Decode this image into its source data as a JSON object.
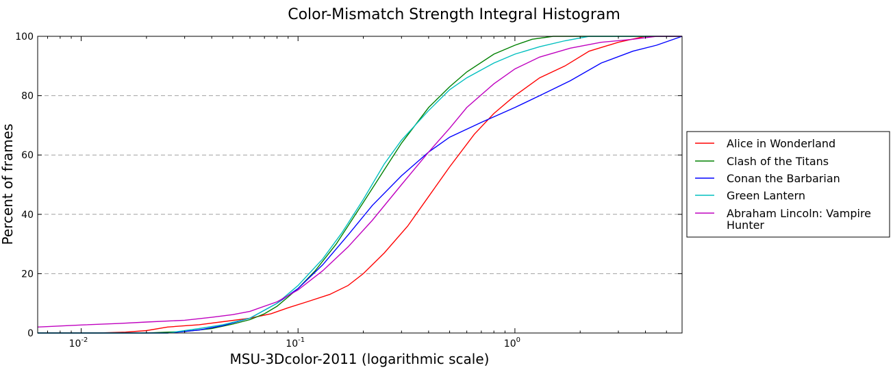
{
  "chart_data": {
    "type": "line",
    "title": "Color-Mismatch Strength Integral Histogram",
    "xlabel": "MSU-3Dcolor-2011 (logarithmic scale)",
    "ylabel": "Percent of frames",
    "xscale": "log",
    "xlim": [
      0.0063,
      5.9
    ],
    "ylim": [
      0,
      100
    ],
    "xticks": [
      {
        "value": 0.01,
        "base": "10",
        "exp": "-2"
      },
      {
        "value": 0.1,
        "base": "10",
        "exp": "-1"
      },
      {
        "value": 1,
        "base": "10",
        "exp": "0"
      }
    ],
    "yticks": [
      0,
      20,
      40,
      60,
      80,
      100
    ],
    "grid": "horizontal dashed",
    "legend_position": "right-outside",
    "series": [
      {
        "name": "Alice in Wonderland",
        "color": "#ff0000",
        "x": [
          0.0063,
          0.012,
          0.016,
          0.02,
          0.025,
          0.035,
          0.045,
          0.06,
          0.075,
          0.09,
          0.11,
          0.14,
          0.17,
          0.2,
          0.25,
          0.32,
          0.4,
          0.5,
          0.65,
          0.8,
          1.0,
          1.3,
          1.7,
          2.2,
          3.0,
          4.0,
          5.9
        ],
        "y": [
          0,
          0,
          0.3,
          0.8,
          2.0,
          2.8,
          3.8,
          5.0,
          6.5,
          8.5,
          10.5,
          13.0,
          16.0,
          20.0,
          27.0,
          36.0,
          46.0,
          56.0,
          67.0,
          74.0,
          80.0,
          86.0,
          90.0,
          95.0,
          98.0,
          100,
          100
        ]
      },
      {
        "name": "Clash of the Titans",
        "color": "#008000",
        "x": [
          0.0063,
          0.02,
          0.03,
          0.04,
          0.05,
          0.06,
          0.07,
          0.08,
          0.1,
          0.12,
          0.15,
          0.2,
          0.25,
          0.3,
          0.4,
          0.5,
          0.6,
          0.8,
          1.0,
          1.2,
          1.5,
          2.0,
          3.0,
          5.9
        ],
        "y": [
          0,
          0,
          0.5,
          1.5,
          3.0,
          4.5,
          6.5,
          9.0,
          15.0,
          21.0,
          30.0,
          44.0,
          55.0,
          64.0,
          76.0,
          83.0,
          88.0,
          94.0,
          97.0,
          99.0,
          100,
          100,
          100,
          100
        ]
      },
      {
        "name": "Conan the Barbarian",
        "color": "#0000ff",
        "x": [
          0.0063,
          0.025,
          0.035,
          0.045,
          0.06,
          0.08,
          0.1,
          0.13,
          0.17,
          0.22,
          0.3,
          0.4,
          0.5,
          0.7,
          1.0,
          1.3,
          1.8,
          2.5,
          3.5,
          4.5,
          5.9
        ],
        "y": [
          0,
          0,
          1.0,
          2.5,
          5.0,
          10.0,
          15.0,
          23.0,
          33.0,
          43.0,
          53.0,
          61.0,
          66.0,
          71.0,
          76.0,
          80.0,
          85.0,
          91.0,
          95.0,
          97.0,
          100
        ]
      },
      {
        "name": "Green Lantern",
        "color": "#00bfbf",
        "x": [
          0.0063,
          0.025,
          0.035,
          0.045,
          0.06,
          0.08,
          0.1,
          0.13,
          0.16,
          0.2,
          0.25,
          0.3,
          0.4,
          0.5,
          0.6,
          0.8,
          1.0,
          1.3,
          1.7,
          2.2,
          3.0,
          5.9
        ],
        "y": [
          0,
          0,
          1.5,
          2.8,
          5.0,
          10.0,
          16.0,
          25.0,
          34.0,
          45.0,
          57.0,
          65.0,
          75.0,
          82.0,
          86.0,
          91.0,
          94.0,
          96.5,
          98.5,
          100,
          100,
          100
        ]
      },
      {
        "name": "Abraham Lincoln: Vampire Hunter",
        "color": "#bf00bf",
        "x": [
          0.0063,
          0.01,
          0.015,
          0.02,
          0.03,
          0.04,
          0.05,
          0.06,
          0.08,
          0.1,
          0.13,
          0.17,
          0.22,
          0.3,
          0.4,
          0.5,
          0.6,
          0.8,
          1.0,
          1.3,
          1.8,
          2.5,
          3.5,
          4.5,
          5.9
        ],
        "y": [
          2.0,
          2.7,
          3.2,
          3.7,
          4.3,
          5.3,
          6.2,
          7.3,
          10.5,
          14.5,
          21.0,
          29.0,
          38.0,
          50.0,
          61.0,
          69.0,
          76.0,
          84.0,
          89.0,
          93.0,
          96.0,
          98.0,
          99.0,
          100,
          100
        ]
      }
    ]
  }
}
